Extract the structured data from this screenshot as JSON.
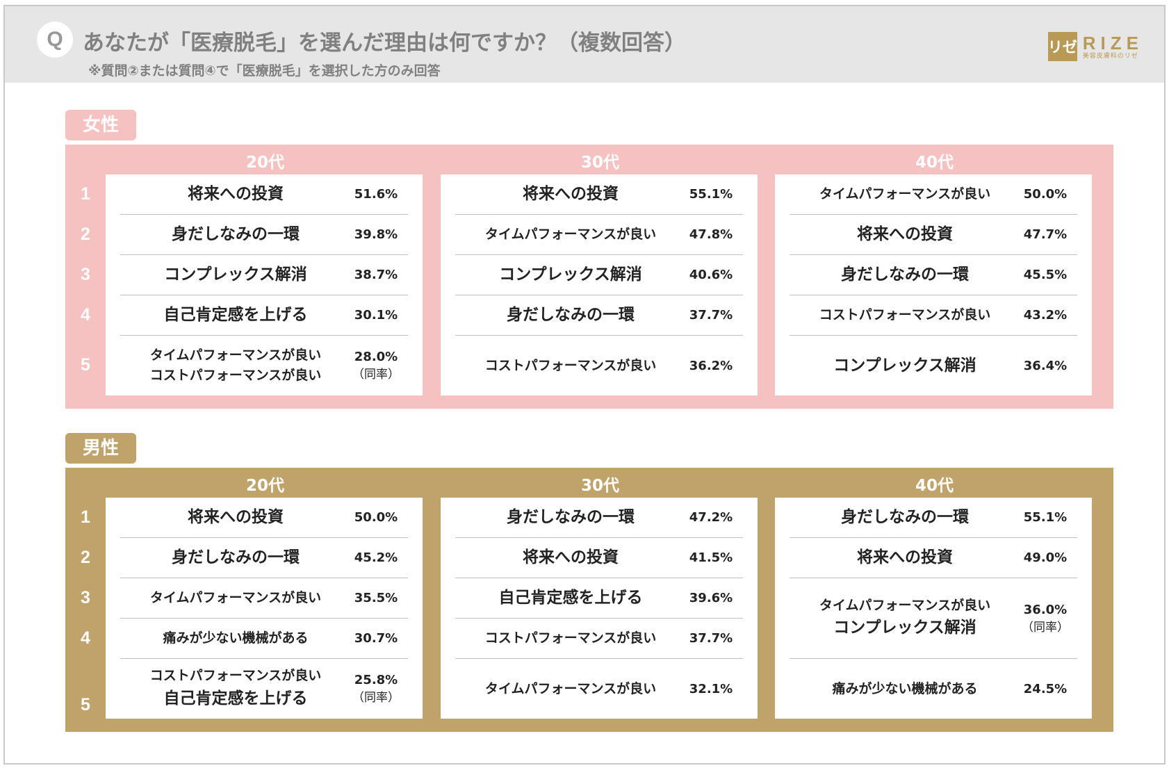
{
  "header": {
    "q_mark": "Q",
    "title": "あなたが「医療脱毛」を選んだ理由は何ですか？（複数回答）",
    "subtitle": "※質問②または質問④で「医療脱毛」を選択した方のみ回答",
    "logo_mark": "リゼ",
    "logo_text": "RIZE",
    "logo_sub": "美容皮膚科のリゼ"
  },
  "colors": {
    "female": "#f6c1c1",
    "male": "#bfa36a",
    "logo": "#b89a56",
    "header_bg": "#e6e6e6"
  },
  "ranks": [
    "1",
    "2",
    "3",
    "4",
    "5"
  ],
  "chart_data": {
    "type": "table",
    "groups": [
      {
        "name": "女性",
        "columns": [
          {
            "age": "20代",
            "rows": [
              {
                "rank": "1",
                "labels": [
                  "将来への投資"
                ],
                "pct": "51.6%"
              },
              {
                "rank": "2",
                "labels": [
                  "身だしなみの一環"
                ],
                "pct": "39.8%"
              },
              {
                "rank": "3",
                "labels": [
                  "コンプレックス解消"
                ],
                "pct": "38.7%"
              },
              {
                "rank": "4",
                "labels": [
                  "自己肯定感を上げる"
                ],
                "pct": "30.1%"
              },
              {
                "rank": "5",
                "labels": [
                  "タイムパフォーマンスが良い",
                  "コストパフォーマンスが良い"
                ],
                "pct": "28.0%",
                "note": "（同率）"
              }
            ]
          },
          {
            "age": "30代",
            "rows": [
              {
                "rank": "1",
                "labels": [
                  "将来への投資"
                ],
                "pct": "55.1%"
              },
              {
                "rank": "2",
                "labels": [
                  "タイムパフォーマンスが良い"
                ],
                "pct": "47.8%"
              },
              {
                "rank": "3",
                "labels": [
                  "コンプレックス解消"
                ],
                "pct": "40.6%"
              },
              {
                "rank": "4",
                "labels": [
                  "身だしなみの一環"
                ],
                "pct": "37.7%"
              },
              {
                "rank": "5",
                "labels": [
                  "コストパフォーマンスが良い"
                ],
                "pct": "36.2%"
              }
            ]
          },
          {
            "age": "40代",
            "rows": [
              {
                "rank": "1",
                "labels": [
                  "タイムパフォーマンスが良い"
                ],
                "pct": "50.0%"
              },
              {
                "rank": "2",
                "labels": [
                  "将来への投資"
                ],
                "pct": "47.7%"
              },
              {
                "rank": "3",
                "labels": [
                  "身だしなみの一環"
                ],
                "pct": "45.5%"
              },
              {
                "rank": "4",
                "labels": [
                  "コストパフォーマンスが良い"
                ],
                "pct": "43.2%"
              },
              {
                "rank": "5",
                "labels": [
                  "コンプレックス解消"
                ],
                "pct": "36.4%"
              }
            ]
          }
        ]
      },
      {
        "name": "男性",
        "columns": [
          {
            "age": "20代",
            "rows": [
              {
                "rank": "1",
                "labels": [
                  "将来への投資"
                ],
                "pct": "50.0%"
              },
              {
                "rank": "2",
                "labels": [
                  "身だしなみの一環"
                ],
                "pct": "45.2%"
              },
              {
                "rank": "3",
                "labels": [
                  "タイムパフォーマンスが良い"
                ],
                "pct": "35.5%"
              },
              {
                "rank": "4",
                "labels": [
                  "痛みが少ない機械がある"
                ],
                "pct": "30.7%"
              },
              {
                "rank": "5",
                "labels": [
                  "コストパフォーマンスが良い",
                  "自己肯定感を上げる"
                ],
                "pct": "25.8%",
                "note": "（同率）"
              }
            ]
          },
          {
            "age": "30代",
            "rows": [
              {
                "rank": "1",
                "labels": [
                  "身だしなみの一環"
                ],
                "pct": "47.2%"
              },
              {
                "rank": "2",
                "labels": [
                  "将来への投資"
                ],
                "pct": "41.5%"
              },
              {
                "rank": "3",
                "labels": [
                  "自己肯定感を上げる"
                ],
                "pct": "39.6%"
              },
              {
                "rank": "4",
                "labels": [
                  "コストパフォーマンスが良い"
                ],
                "pct": "37.7%"
              },
              {
                "rank": "5",
                "labels": [
                  "タイムパフォーマンスが良い"
                ],
                "pct": "32.1%"
              }
            ]
          },
          {
            "age": "40代",
            "rows": [
              {
                "rank": "1",
                "labels": [
                  "身だしなみの一環"
                ],
                "pct": "55.1%"
              },
              {
                "rank": "2",
                "labels": [
                  "将来への投資"
                ],
                "pct": "49.0%"
              },
              {
                "rank": "3-4",
                "labels": [
                  "タイムパフォーマンスが良い",
                  "コンプレックス解消"
                ],
                "pct": "36.0%",
                "note": "（同率）"
              },
              {
                "rank": "5",
                "labels": [
                  "痛みが少ない機械がある"
                ],
                "pct": "24.5%"
              }
            ]
          }
        ]
      }
    ]
  }
}
